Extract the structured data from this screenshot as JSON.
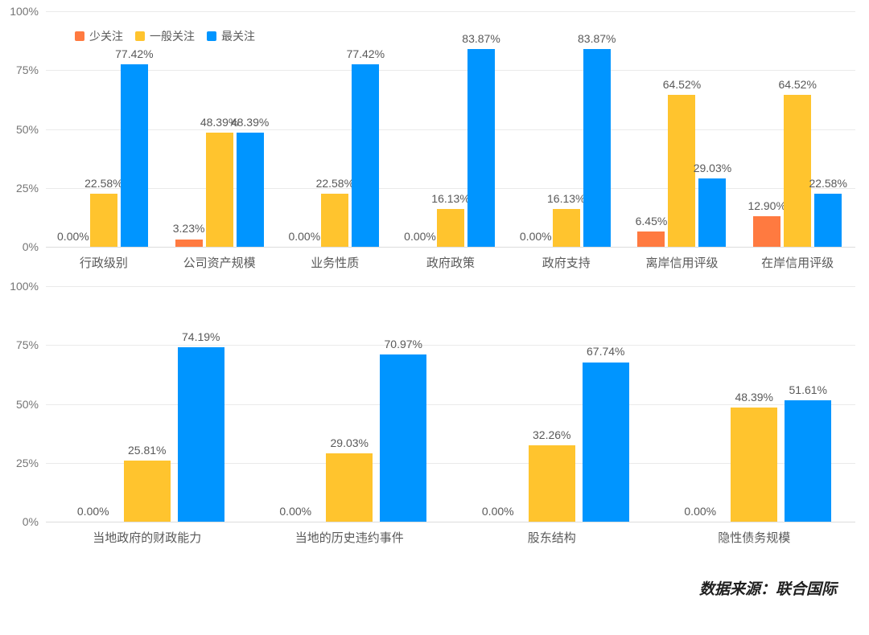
{
  "source_note": "数据来源：联合国际",
  "legend": {
    "items": [
      {
        "id": "less-concern",
        "label": "少关注",
        "color": "#ff7a40"
      },
      {
        "id": "general-concern",
        "label": "一般关注",
        "color": "#ffc42e"
      },
      {
        "id": "most-concern",
        "label": "最关注",
        "color": "#0095ff"
      }
    ]
  },
  "chart_data": [
    {
      "type": "bar",
      "title": "",
      "xlabel": "",
      "ylabel": "",
      "ylim": [
        0,
        100
      ],
      "grid": true,
      "legend_position": "top-left",
      "yticks": [
        {
          "value": 100,
          "label": "100%"
        },
        {
          "value": 75,
          "label": "75%"
        },
        {
          "value": 50,
          "label": "50%"
        },
        {
          "value": 25,
          "label": "25%"
        },
        {
          "value": 0,
          "label": "0%"
        }
      ],
      "categories": [
        "行政级别",
        "公司资产规模",
        "业务性质",
        "政府政策",
        "政府支持",
        "离岸信用评级",
        "在岸信用评级"
      ],
      "series": [
        {
          "id": "less-concern",
          "name": "少关注",
          "color": "#ff7a40",
          "values": [
            0.0,
            3.23,
            0.0,
            0.0,
            0.0,
            6.45,
            12.9
          ],
          "labels": [
            "0.00%",
            "3.23%",
            "0.00%",
            "0.00%",
            "0.00%",
            "6.45%",
            "12.90%"
          ]
        },
        {
          "id": "general-concern",
          "name": "一般关注",
          "color": "#ffc42e",
          "values": [
            22.58,
            48.39,
            22.58,
            16.13,
            16.13,
            64.52,
            64.52
          ],
          "labels": [
            "22.58%",
            "48.39%",
            "22.58%",
            "16.13%",
            "16.13%",
            "64.52%",
            "64.52%"
          ]
        },
        {
          "id": "most-concern",
          "name": "最关注",
          "color": "#0095ff",
          "values": [
            77.42,
            48.39,
            77.42,
            83.87,
            83.87,
            29.03,
            22.58
          ],
          "labels": [
            "77.42%",
            "48.39%",
            "77.42%",
            "83.87%",
            "83.87%",
            "29.03%",
            "22.58%"
          ]
        }
      ]
    },
    {
      "type": "bar",
      "title": "",
      "xlabel": "",
      "ylabel": "",
      "ylim": [
        0,
        100
      ],
      "grid": true,
      "legend_position": "none",
      "yticks": [
        {
          "value": 100,
          "label": "100%"
        },
        {
          "value": 75,
          "label": "75%"
        },
        {
          "value": 50,
          "label": "50%"
        },
        {
          "value": 25,
          "label": "25%"
        },
        {
          "value": 0,
          "label": "0%"
        }
      ],
      "categories": [
        "当地政府的财政能力",
        "当地的历史违约事件",
        "股东结构",
        "隐性债务规模"
      ],
      "series": [
        {
          "id": "less-concern",
          "name": "少关注",
          "color": "#ff7a40",
          "values": [
            0.0,
            0.0,
            0.0,
            0.0
          ],
          "labels": [
            "0.00%",
            "0.00%",
            "0.00%",
            "0.00%"
          ]
        },
        {
          "id": "general-concern",
          "name": "一般关注",
          "color": "#ffc42e",
          "values": [
            25.81,
            29.03,
            32.26,
            48.39
          ],
          "labels": [
            "25.81%",
            "29.03%",
            "32.26%",
            "48.39%"
          ]
        },
        {
          "id": "most-concern",
          "name": "最关注",
          "color": "#0095ff",
          "values": [
            74.19,
            70.97,
            67.74,
            51.61
          ],
          "labels": [
            "74.19%",
            "70.97%",
            "67.74%",
            "51.61%"
          ]
        }
      ]
    }
  ]
}
